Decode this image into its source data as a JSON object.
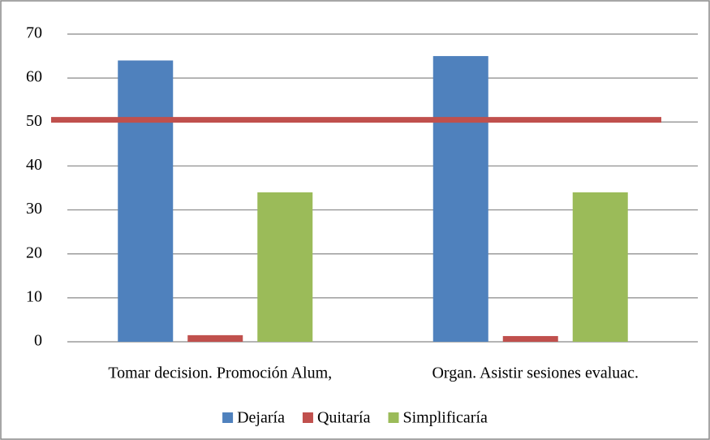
{
  "chart_data": {
    "type": "bar",
    "categories": [
      "Tomar decision. Promoción Alum,",
      "Organ. Asistir sesiones evaluac."
    ],
    "series": [
      {
        "name": "Dejaría",
        "color": "#4f81bd",
        "values": [
          64,
          65
        ]
      },
      {
        "name": "Quitaría",
        "color": "#c0504d",
        "values": [
          1.5,
          1.3
        ]
      },
      {
        "name": "Simplificaría",
        "color": "#9bbb59",
        "values": [
          34,
          34
        ]
      }
    ],
    "reference_line": {
      "value": 50.5,
      "color": "#c0504d"
    },
    "ylim": [
      0,
      70
    ],
    "yticks": [
      0,
      10,
      20,
      30,
      40,
      50,
      60,
      70
    ],
    "grid": true,
    "legend": "bottom"
  }
}
